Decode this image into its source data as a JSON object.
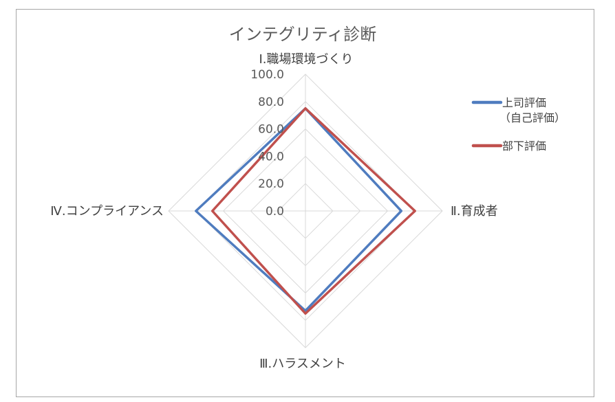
{
  "chart_data": {
    "type": "radar",
    "title": "インテグリティ診断",
    "axes": [
      "Ⅰ.職場環境づくり",
      "Ⅱ.育成者",
      "Ⅲ.ハラスメント",
      "Ⅳ.コンプライアンス"
    ],
    "rlim": [
      0,
      100
    ],
    "ticks": [
      0,
      20,
      40,
      60,
      80,
      100
    ],
    "tick_labels": [
      "0.0",
      "20.0",
      "40.0",
      "60.0",
      "80.0",
      "100.0"
    ],
    "grid": true,
    "legend_position": "right",
    "series": [
      {
        "name": "上司評価\n（自己評価）",
        "legend_lines": [
          "上司評価",
          "（自己評価）"
        ],
        "color": "#4f7cbf",
        "values": [
          75,
          70,
          73,
          80
        ]
      },
      {
        "name": "部下評価",
        "legend_lines": [
          "部下評価"
        ],
        "color": "#c0504d",
        "values": [
          75,
          80,
          75,
          68
        ]
      }
    ]
  }
}
